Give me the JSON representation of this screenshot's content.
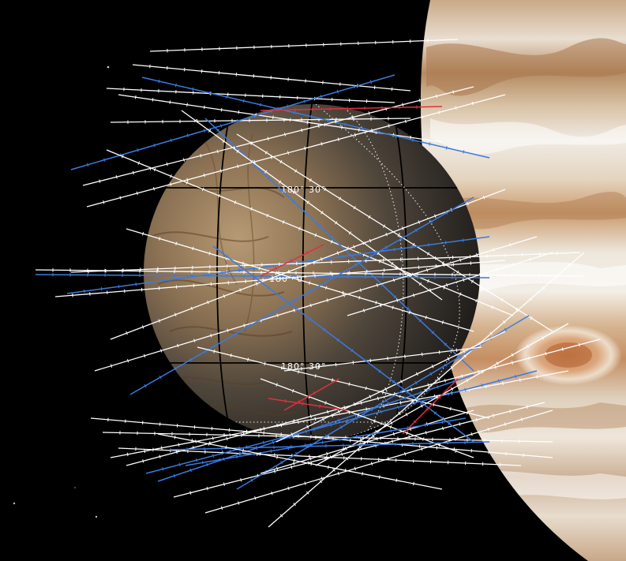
{
  "image": {
    "subject": "europa-flyby-tracks-over-jupiter",
    "colors": {
      "background": "#000000",
      "track_primary": "#ffffff",
      "track_secondary": "#3a7be0",
      "track_highlight": "#e03040",
      "europa_grid": "#000000",
      "europa_grid_dotted": "#e8e8e8"
    }
  },
  "europa": {
    "grid_labels": [
      {
        "text": "180° 30°"
      },
      {
        "text": "180° 0°"
      },
      {
        "text": "180° 30°"
      }
    ]
  }
}
